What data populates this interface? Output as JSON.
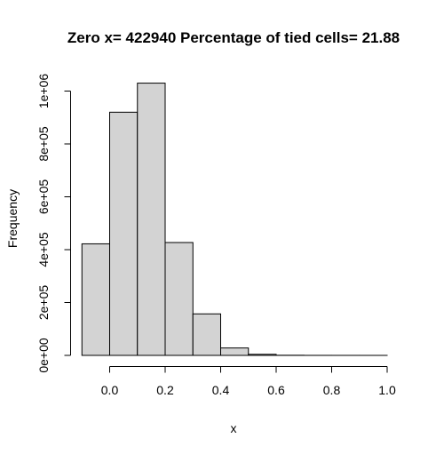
{
  "chart_data": {
    "type": "bar",
    "title": "Zero x= 422940  Percentage of tied cells= 21.88",
    "xlabel": "x",
    "ylabel": "Frequency",
    "bins": [
      {
        "from": -0.1,
        "to": 0.0,
        "value": 422000
      },
      {
        "from": 0.0,
        "to": 0.1,
        "value": 920000
      },
      {
        "from": 0.1,
        "to": 0.2,
        "value": 1030000
      },
      {
        "from": 0.2,
        "to": 0.3,
        "value": 427000
      },
      {
        "from": 0.3,
        "to": 0.4,
        "value": 157000
      },
      {
        "from": 0.4,
        "to": 0.5,
        "value": 28000
      },
      {
        "from": 0.5,
        "to": 0.6,
        "value": 4000
      },
      {
        "from": 0.6,
        "to": 0.7,
        "value": 500
      },
      {
        "from": 0.7,
        "to": 0.8,
        "value": 100
      },
      {
        "from": 0.8,
        "to": 0.9,
        "value": 50
      },
      {
        "from": 0.9,
        "to": 1.0,
        "value": 20
      }
    ],
    "xlim": [
      -0.1,
      1.0
    ],
    "ylim": [
      0,
      1030000
    ],
    "x_ticks": [
      0.0,
      0.2,
      0.4,
      0.6,
      0.8,
      1.0
    ],
    "x_tick_labels": [
      "0.0",
      "0.2",
      "0.4",
      "0.6",
      "0.8",
      "1.0"
    ],
    "y_ticks": [
      0,
      200000,
      400000,
      600000,
      800000,
      1000000
    ],
    "y_tick_labels": [
      "0e+00",
      "2e+05",
      "4e+05",
      "6e+05",
      "8e+05",
      "1e+06"
    ],
    "bar_color": "#d3d3d3",
    "edge_color": "#000000",
    "grid": false
  }
}
